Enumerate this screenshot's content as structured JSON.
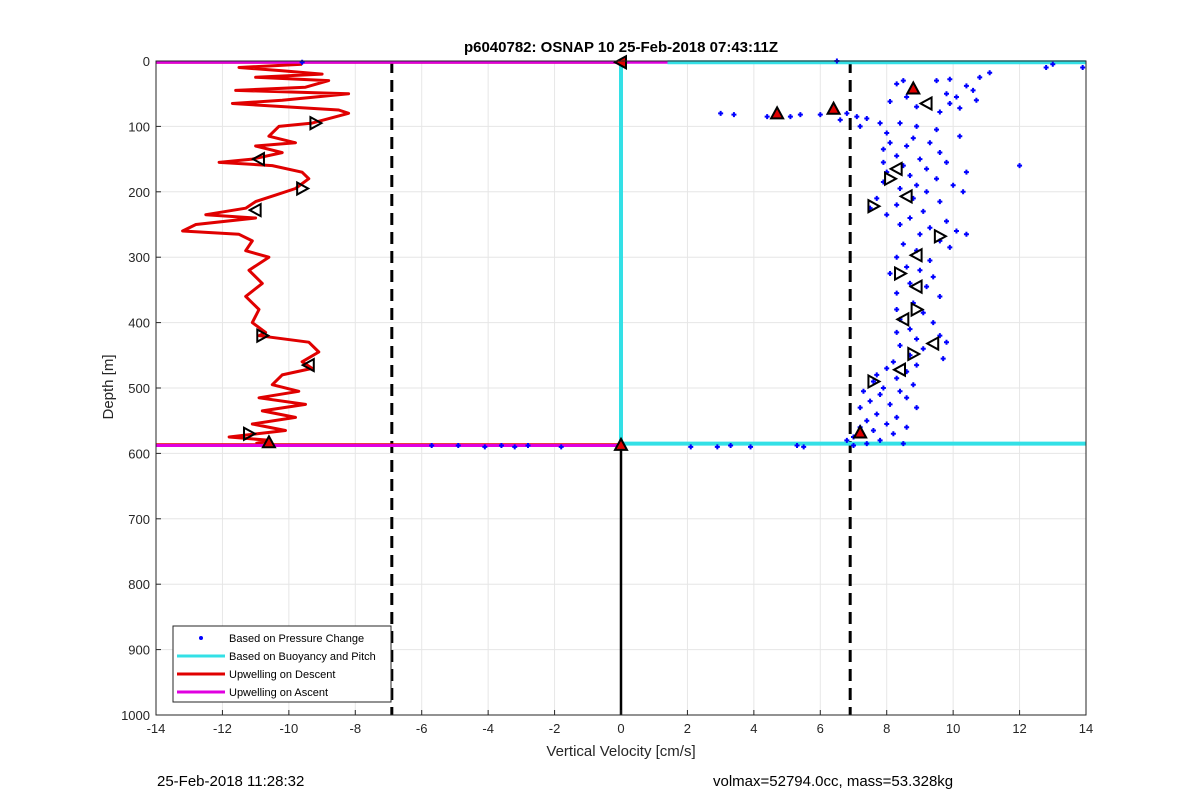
{
  "chart_data": {
    "type": "scatter",
    "title": "p6040782: OSNAP 10 25-Feb-2018 07:43:11Z",
    "xlabel": "Vertical Velocity [cm/s]",
    "ylabel": "Depth [m]",
    "xlim": [
      -14,
      14
    ],
    "ylim": [
      0,
      1000
    ],
    "y_reversed": true,
    "grid": true,
    "legend_position": "bottom-left",
    "xticks": [
      -14,
      -12,
      -10,
      -8,
      -6,
      -4,
      -2,
      0,
      2,
      4,
      6,
      8,
      10,
      12,
      14
    ],
    "yticks": [
      0,
      100,
      200,
      300,
      400,
      500,
      600,
      700,
      800,
      900,
      1000
    ],
    "legend": [
      {
        "label": "Based on Pressure Change",
        "color": "#0000ff",
        "style": "dot"
      },
      {
        "label": "Based on Buoyancy and Pitch",
        "color": "#33e0e6",
        "style": "line"
      },
      {
        "label": "Upwelling on Descent",
        "color": "#e00000",
        "style": "line"
      },
      {
        "label": "Upwelling on Ascent",
        "color": "#e000e0",
        "style": "line"
      }
    ],
    "reference_lines": {
      "dashed_x": [
        -6.9,
        6.9
      ],
      "zero_line_color": "#000000"
    },
    "series": {
      "pressure_change_points": [
        [
          12.8,
          10
        ],
        [
          13.0,
          5
        ],
        [
          13.9,
          10
        ],
        [
          11.1,
          18
        ],
        [
          10.8,
          25
        ],
        [
          9.9,
          28
        ],
        [
          9.5,
          30
        ],
        [
          8.5,
          30
        ],
        [
          8.3,
          35
        ],
        [
          10.4,
          38
        ],
        [
          10.6,
          45
        ],
        [
          9.8,
          50
        ],
        [
          10.1,
          55
        ],
        [
          8.6,
          55
        ],
        [
          10.7,
          60
        ],
        [
          8.1,
          62
        ],
        [
          9.9,
          65
        ],
        [
          8.9,
          70
        ],
        [
          10.2,
          72
        ],
        [
          9.6,
          78
        ],
        [
          3.0,
          80
        ],
        [
          3.4,
          82
        ],
        [
          4.4,
          85
        ],
        [
          5.1,
          85
        ],
        [
          5.4,
          82
        ],
        [
          6.0,
          82
        ],
        [
          6.8,
          80
        ],
        [
          7.1,
          85
        ],
        [
          7.4,
          88
        ],
        [
          6.6,
          90
        ],
        [
          7.8,
          95
        ],
        [
          8.4,
          95
        ],
        [
          7.2,
          100
        ],
        [
          8.9,
          100
        ],
        [
          9.5,
          105
        ],
        [
          8.0,
          110
        ],
        [
          8.8,
          118
        ],
        [
          10.2,
          115
        ],
        [
          8.1,
          125
        ],
        [
          9.3,
          125
        ],
        [
          8.6,
          130
        ],
        [
          7.9,
          135
        ],
        [
          9.6,
          140
        ],
        [
          8.3,
          145
        ],
        [
          9.0,
          150
        ],
        [
          7.9,
          155
        ],
        [
          9.8,
          155
        ],
        [
          8.5,
          160
        ],
        [
          12.0,
          160
        ],
        [
          9.2,
          165
        ],
        [
          8.0,
          170
        ],
        [
          10.4,
          170
        ],
        [
          8.7,
          175
        ],
        [
          9.5,
          180
        ],
        [
          7.9,
          185
        ],
        [
          8.9,
          190
        ],
        [
          10.0,
          190
        ],
        [
          8.4,
          195
        ],
        [
          9.2,
          200
        ],
        [
          10.3,
          200
        ],
        [
          7.7,
          210
        ],
        [
          8.8,
          210
        ],
        [
          9.6,
          215
        ],
        [
          8.3,
          220
        ],
        [
          7.5,
          225
        ],
        [
          9.1,
          230
        ],
        [
          8.0,
          235
        ],
        [
          8.7,
          240
        ],
        [
          9.8,
          245
        ],
        [
          8.4,
          250
        ],
        [
          9.3,
          255
        ],
        [
          10.1,
          260
        ],
        [
          9.0,
          265
        ],
        [
          10.4,
          265
        ],
        [
          9.6,
          275
        ],
        [
          8.5,
          280
        ],
        [
          9.9,
          285
        ],
        [
          8.9,
          290
        ],
        [
          8.3,
          300
        ],
        [
          9.3,
          305
        ],
        [
          8.6,
          315
        ],
        [
          9.0,
          320
        ],
        [
          8.1,
          325
        ],
        [
          9.4,
          330
        ],
        [
          8.7,
          340
        ],
        [
          9.2,
          345
        ],
        [
          8.3,
          355
        ],
        [
          9.6,
          360
        ],
        [
          8.8,
          370
        ],
        [
          8.3,
          380
        ],
        [
          9.1,
          385
        ],
        [
          8.4,
          395
        ],
        [
          9.4,
          400
        ],
        [
          8.7,
          410
        ],
        [
          8.3,
          415
        ],
        [
          9.6,
          420
        ],
        [
          8.9,
          425
        ],
        [
          9.8,
          430
        ],
        [
          8.4,
          435
        ],
        [
          9.1,
          440
        ],
        [
          8.7,
          450
        ],
        [
          9.7,
          455
        ],
        [
          8.2,
          460
        ],
        [
          8.9,
          465
        ],
        [
          8.0,
          470
        ],
        [
          8.6,
          475
        ],
        [
          7.7,
          480
        ],
        [
          8.3,
          485
        ],
        [
          7.6,
          490
        ],
        [
          8.8,
          495
        ],
        [
          7.9,
          500
        ],
        [
          8.4,
          505
        ],
        [
          7.3,
          505
        ],
        [
          7.8,
          510
        ],
        [
          8.6,
          515
        ],
        [
          7.5,
          520
        ],
        [
          8.1,
          525
        ],
        [
          7.2,
          530
        ],
        [
          8.9,
          530
        ],
        [
          7.7,
          540
        ],
        [
          8.3,
          545
        ],
        [
          7.4,
          550
        ],
        [
          8.0,
          555
        ],
        [
          7.2,
          560
        ],
        [
          8.6,
          560
        ],
        [
          7.6,
          565
        ],
        [
          8.2,
          570
        ],
        [
          7.0,
          575
        ],
        [
          7.8,
          580
        ],
        [
          6.8,
          580
        ],
        [
          7.4,
          585
        ],
        [
          8.5,
          585
        ],
        [
          7.0,
          588
        ],
        [
          2.1,
          590
        ],
        [
          2.9,
          590
        ],
        [
          3.3,
          588
        ],
        [
          3.9,
          590
        ],
        [
          5.3,
          588
        ],
        [
          5.5,
          590
        ],
        [
          -1.8,
          590
        ],
        [
          -2.8,
          588
        ],
        [
          -3.2,
          590
        ],
        [
          -3.6,
          588
        ],
        [
          -4.1,
          590
        ],
        [
          -4.9,
          588
        ],
        [
          -5.7,
          588
        ],
        [
          -9.6,
          2
        ],
        [
          6.5,
          0
        ]
      ],
      "buoyancy_pitch_segments": [
        {
          "x": [
            1.4,
            14
          ],
          "y": [
            2,
            2
          ]
        },
        {
          "x": [
            0,
            0
          ],
          "y": [
            2,
            588
          ]
        },
        {
          "x": [
            0,
            14
          ],
          "y": [
            585,
            585
          ]
        }
      ],
      "upwelling_descent_profile": [
        [
          -9.6,
          5
        ],
        [
          -11.5,
          10
        ],
        [
          -10.2,
          15
        ],
        [
          -9.0,
          20
        ],
        [
          -11.0,
          25
        ],
        [
          -8.8,
          30
        ],
        [
          -9.5,
          40
        ],
        [
          -11.6,
          45
        ],
        [
          -8.2,
          50
        ],
        [
          -10.2,
          60
        ],
        [
          -11.7,
          65
        ],
        [
          -8.5,
          75
        ],
        [
          -8.2,
          80
        ],
        [
          -9.3,
          95
        ],
        [
          -10.3,
          100
        ],
        [
          -10.6,
          115
        ],
        [
          -9.8,
          125
        ],
        [
          -11.0,
          130
        ],
        [
          -10.2,
          140
        ],
        [
          -11.1,
          150
        ],
        [
          -12.1,
          155
        ],
        [
          -10.5,
          160
        ],
        [
          -9.6,
          170
        ],
        [
          -9.4,
          180
        ],
        [
          -9.8,
          195
        ],
        [
          -10.4,
          205
        ],
        [
          -11.0,
          215
        ],
        [
          -11.3,
          225
        ],
        [
          -12.5,
          235
        ],
        [
          -11.0,
          240
        ],
        [
          -12.8,
          250
        ],
        [
          -13.2,
          260
        ],
        [
          -11.5,
          265
        ],
        [
          -11.1,
          275
        ],
        [
          -11.3,
          290
        ],
        [
          -10.6,
          300
        ],
        [
          -11.2,
          320
        ],
        [
          -10.8,
          340
        ],
        [
          -11.3,
          360
        ],
        [
          -10.9,
          380
        ],
        [
          -11.1,
          400
        ],
        [
          -10.7,
          415
        ],
        [
          -10.9,
          420
        ],
        [
          -9.4,
          430
        ],
        [
          -9.1,
          445
        ],
        [
          -9.6,
          460
        ],
        [
          -9.3,
          470
        ],
        [
          -10.2,
          480
        ],
        [
          -10.5,
          495
        ],
        [
          -9.7,
          505
        ],
        [
          -10.9,
          515
        ],
        [
          -9.5,
          525
        ],
        [
          -10.8,
          535
        ],
        [
          -9.8,
          545
        ],
        [
          -11.1,
          555
        ],
        [
          -10.1,
          565
        ],
        [
          -11.8,
          575
        ],
        [
          -10.6,
          580
        ],
        [
          -11.0,
          585
        ]
      ],
      "upwelling_ascent_profile": [
        [
          -14,
          2
        ],
        [
          1.4,
          2
        ]
      ],
      "descent_markers": [
        [
          0,
          2
        ],
        [
          -9.2,
          95
        ],
        [
          -10.9,
          150
        ],
        [
          -9.6,
          195
        ],
        [
          -11.0,
          228
        ],
        [
          -10.8,
          420
        ],
        [
          -9.4,
          465
        ],
        [
          -11.2,
          570
        ],
        [
          8.3,
          165
        ],
        [
          8.1,
          180
        ],
        [
          8.6,
          207
        ],
        [
          7.6,
          222
        ],
        [
          8.9,
          297
        ],
        [
          8.4,
          325
        ],
        [
          8.9,
          345
        ],
        [
          8.9,
          380
        ],
        [
          8.5,
          395
        ],
        [
          8.8,
          448
        ],
        [
          8.4,
          472
        ],
        [
          7.6,
          490
        ],
        [
          9.2,
          65
        ],
        [
          9.6,
          268
        ],
        [
          9.4,
          432
        ]
      ],
      "ascent_markers": [
        [
          8.8,
          42
        ],
        [
          4.7,
          80
        ],
        [
          6.4,
          73
        ],
        [
          -10.6,
          583
        ],
        [
          0,
          587
        ],
        [
          7.2,
          568
        ]
      ]
    }
  },
  "footer": {
    "left_text": "25-Feb-2018 11:28:32",
    "right_text": "volmax=52794.0cc, mass=53.328kg"
  }
}
